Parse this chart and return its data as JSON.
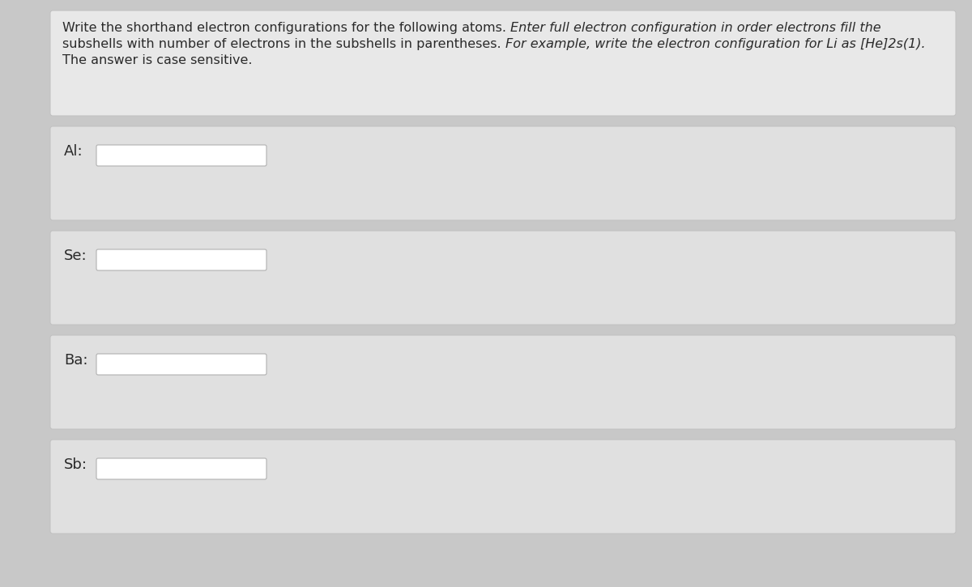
{
  "outer_bg": "#c8c8c8",
  "content_bg": "#e8e8e8",
  "panel_bg": "#e0e0e0",
  "panel_border": "#c0c0c0",
  "input_bg": "#ffffff",
  "input_border": "#b0b0b0",
  "text_color": "#2a2a2a",
  "title_fontsize": 11.5,
  "label_fontsize": 13,
  "line1_normal": "Write the shorthand electron configurations for the following atoms. ",
  "line1_italic": "Enter full electron configuration in order electrons fill the",
  "line2_normal": "subshells with number of electrons in the subshells in parentheses. ",
  "line2_italic": "For example, write the electron configuration for Li as [He]2s(1).",
  "line3": "The answer is case sensitive.",
  "labels": [
    "Al:",
    "Se:",
    "Ba:",
    "Sb:"
  ]
}
